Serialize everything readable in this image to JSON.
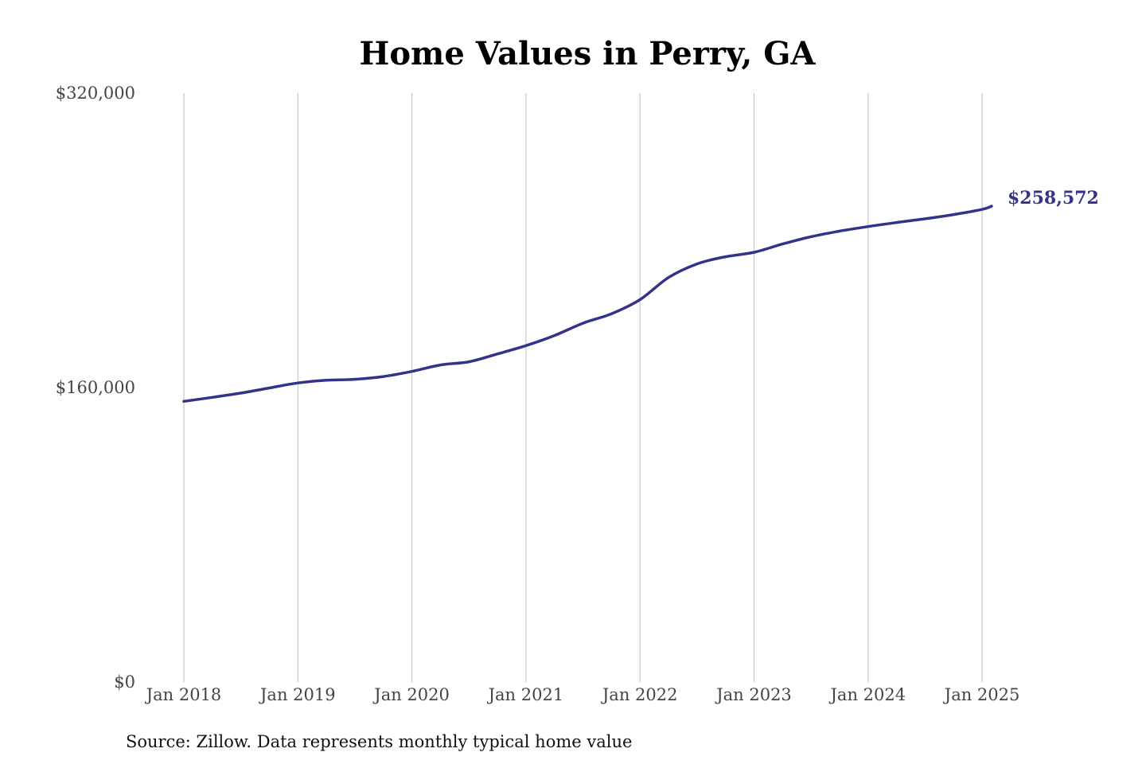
{
  "chart_data": {
    "type": "line",
    "title": "Home Values in Perry, GA",
    "source": "Source: Zillow. Data represents monthly typical home value",
    "xlabel": "",
    "ylabel": "",
    "y_ticks": [
      {
        "value": 0,
        "label": "$0"
      },
      {
        "value": 160000,
        "label": "$160,000"
      },
      {
        "value": 320000,
        "label": "$320,000"
      }
    ],
    "ylim": [
      0,
      320000
    ],
    "x_ticks": [
      "Jan 2018",
      "Jan 2019",
      "Jan 2020",
      "Jan 2021",
      "Jan 2022",
      "Jan 2023",
      "Jan 2024",
      "Jan 2025"
    ],
    "xlim": [
      "2018-01",
      "2025-02"
    ],
    "grid": "vertical",
    "line_color": "#33338a",
    "end_label": "$258,572",
    "series": [
      {
        "x": [
          "2018-01",
          "2018-04",
          "2018-07",
          "2018-10",
          "2019-01",
          "2019-04",
          "2019-07",
          "2019-10",
          "2020-01",
          "2020-04",
          "2020-07",
          "2020-10",
          "2021-01",
          "2021-04",
          "2021-07",
          "2021-10",
          "2022-01",
          "2022-04",
          "2022-07",
          "2022-10",
          "2023-01",
          "2023-04",
          "2023-07",
          "2023-10",
          "2024-01",
          "2024-04",
          "2024-07",
          "2024-10",
          "2025-01",
          "2025-02"
        ],
        "values": [
          152500,
          154700,
          157000,
          159800,
          162500,
          164000,
          164500,
          166000,
          168800,
          172300,
          174000,
          178300,
          182800,
          188300,
          195000,
          200100,
          207800,
          219800,
          227200,
          231100,
          233500,
          238000,
          242000,
          245000,
          247500,
          249700,
          251700,
          254000,
          256800,
          258572
        ]
      }
    ]
  }
}
